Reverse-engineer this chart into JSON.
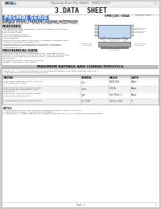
{
  "title": "3.DATA  SHEET",
  "series_title": "P6SMBJ SERIES",
  "series_title_bg": "#4472c4",
  "series_title_color": "#ffffff",
  "header_line1": "SURFACE MOUNT TRANSIENT VOLTAGE SUPPRESSOR",
  "header_line2": "VOLTAGE: 5.0 to 220   Series 600 Watt Peak Power Pulses",
  "part_number": "SMB J26C-26AA",
  "features_title": "FEATURES",
  "features": [
    "For surface mounted applications in order to optimize board space.",
    "Low profile package.",
    "Built-in strain relief.",
    "Glass passivated junction.",
    "Excellent clamping capability.",
    "Low inductance.",
    "Performance: this typically less than 1% at rated pulse width, 600W",
    "Typical all operation: 1.4 ohms of DC.",
    "High temperature soldering: 260°C/10 seconds at terminals.",
    "Plastic packages have Underwriters Laboratory Flammability",
    "Classification 94V-0."
  ],
  "mech_title": "MECHANICAL DATA",
  "mech_data": [
    "Case: JEDEC DO-214AA molded plastic over passivated junction.",
    "Terminals: Electroplated, solderable per MIL-STD-750, method 2026.",
    "Polarity: Colour band denotes positive with (-) cathode terminal.",
    "Reflow/Hand.",
    "Standard Packaging: Orientation (1K reel).",
    "Weight: 0.002 ounces, 0.060 gram."
  ],
  "table_title": "MAXIMUM RATINGS AND CHARACTERISTICS",
  "table_note1": "Rating at 25 °C Ambient temperature unless otherwise specified, Operation at Junction limit 150°c.",
  "table_note2": "* Use Capacitance base devices system by 5%.",
  "table_headers": [
    "RATING",
    "SYMBOL",
    "VALUE",
    "UNITS"
  ],
  "table_rows": [
    [
      "Peak Power Dissipation at (tp=1ms): TO RATE(NOTE: 1) 0.5 Fig 1.",
      "P_m",
      "600/0.010",
      "Watts"
    ],
    [
      "Peak Forward Surge Current (for single half sine wave) unidirectional rated (NOTE:2 3).",
      "I_mm",
      "200 A",
      "Amps"
    ],
    [
      "Peak Pulse Current MAXIMUM POWER= (.calculation)(NOTE:3 Fig.2).",
      "I_pp",
      "See Table 1",
      "Amps"
    ],
    [
      "Operating/Storage Temperature Range.",
      "Tj / TjTG",
      "-65 to +150",
      "°C"
    ]
  ],
  "notes_title": "NOTES:",
  "notes": [
    "1. Non-repetitive current pulse, per Fig. 3 and standard waveform Type(1) Type 2 Fig. 5.",
    "2. Maximum of p=(peak) = (p) have body wave sweep.",
    "3. Mounted on 5 in² copper pads with use of adequate heat sink, duty cycle = 4 sequential repetitive transient."
  ],
  "logo_color": "#3399cc",
  "border_color": "#aaaaaa",
  "bg_color": "#ffffff",
  "table_header_bg": "#cccccc",
  "table_alt_bg": "#e8e8ff",
  "page_bg": "#d0d0d0",
  "inner_bg": "#ffffff",
  "diagram_fill": "#c5d9f1",
  "diagram_border": "#666666",
  "diagram_side_fill": "#aaaaaa"
}
